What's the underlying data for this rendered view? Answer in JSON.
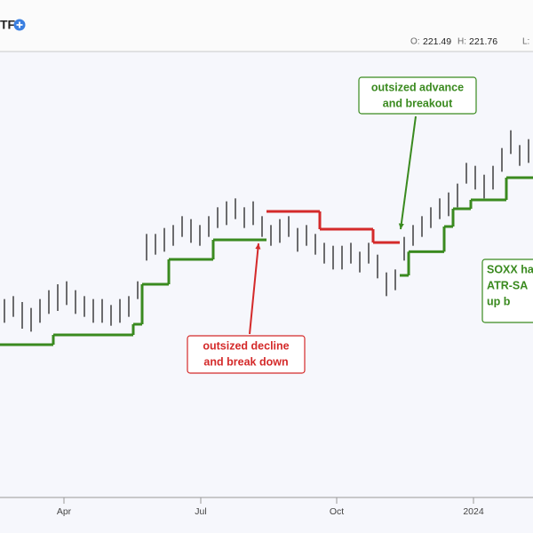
{
  "header": {
    "symbol": "TF",
    "open_label": "O:",
    "open": 221.49,
    "high_label": "H:",
    "high": 221.76,
    "low_label": "L:"
  },
  "chart_data": {
    "type": "hilo",
    "xlim": [
      0,
      60
    ],
    "ylim": [
      95,
      245
    ],
    "xticks": [
      {
        "value": 7.2,
        "label": "Apr"
      },
      {
        "value": 22.6,
        "label": "Jul"
      },
      {
        "value": 37.9,
        "label": "Oct"
      },
      {
        "value": 53.3,
        "label": "2024"
      }
    ],
    "bar_color": "#222222",
    "high": [
      162,
      163,
      161,
      159,
      162,
      165,
      167,
      168,
      165,
      163,
      162,
      162,
      160,
      162,
      163,
      168,
      184,
      184,
      186,
      187,
      190,
      189,
      187,
      190,
      193,
      195,
      196,
      193,
      195,
      190,
      187,
      189,
      190,
      186,
      187,
      184,
      181,
      180,
      180,
      181,
      178,
      181,
      177,
      171,
      172,
      183,
      187,
      190,
      193,
      196,
      198,
      201,
      208,
      207,
      204,
      207,
      213,
      219,
      214,
      216
    ],
    "low": [
      154,
      156,
      152,
      151,
      154,
      157,
      158,
      160,
      157,
      156,
      154,
      154,
      153,
      154,
      156,
      162,
      175,
      177,
      178,
      180,
      183,
      181,
      180,
      183,
      186,
      187,
      189,
      186,
      187,
      183,
      180,
      181,
      183,
      178,
      180,
      177,
      174,
      172,
      172,
      174,
      171,
      174,
      169,
      163,
      165,
      175,
      180,
      183,
      186,
      189,
      190,
      193,
      201,
      199,
      196,
      199,
      205,
      211,
      207,
      208
    ],
    "stops": [
      {
        "color": "#3a8a1f",
        "values": [
          146.6,
          146.6,
          146.6,
          146.6,
          146.6,
          146.6,
          149.9,
          149.9,
          149.9,
          149.9,
          149.9,
          149.9,
          149.9,
          149.9,
          149.9,
          153.5,
          167,
          167,
          167,
          175.4,
          175.4,
          175.4,
          175.4,
          175.4,
          182,
          182,
          182,
          182,
          182,
          182,
          null,
          null,
          null,
          null,
          null,
          null,
          null,
          null,
          null,
          null,
          null,
          null,
          null,
          null,
          null,
          170,
          178,
          178,
          178,
          178,
          186.5,
          192.5,
          192.5,
          195.5,
          195.5,
          195.5,
          195.5,
          203,
          203,
          203
        ]
      },
      {
        "color": "#d42a2a",
        "values": [
          null,
          null,
          null,
          null,
          null,
          null,
          null,
          null,
          null,
          null,
          null,
          null,
          null,
          null,
          null,
          null,
          null,
          null,
          null,
          null,
          null,
          null,
          null,
          null,
          null,
          null,
          null,
          null,
          null,
          null,
          191.6,
          191.6,
          191.6,
          191.6,
          191.6,
          191.6,
          185.6,
          185.6,
          185.6,
          185.6,
          185.6,
          185.6,
          181.1,
          181.1,
          181.1,
          null,
          null,
          null,
          null,
          null,
          null,
          null,
          null,
          null,
          null,
          null,
          null,
          null,
          null,
          null
        ]
      }
    ],
    "annotations": [
      {
        "lines": [
          "outsized advance",
          "and breakout"
        ],
        "color": "#3a8a1f"
      },
      {
        "lines": [
          "outsized decline",
          "and break down"
        ],
        "color": "#d42a2a"
      },
      {
        "lines": [
          "SOXX ha",
          "ATR-SA",
          "up b"
        ],
        "color": "#3a8a1f"
      }
    ]
  }
}
